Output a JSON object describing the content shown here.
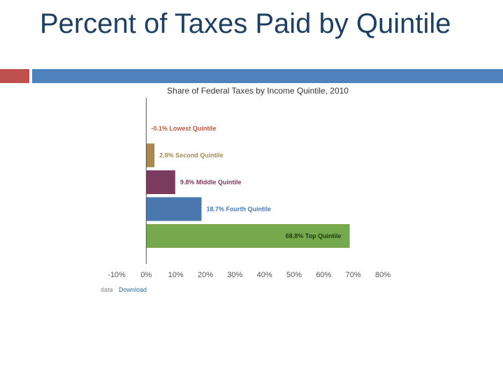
{
  "slide": {
    "title": "Percent of Taxes Paid by Quintile",
    "accent_red": "#c0504d",
    "accent_blue": "#4f81bd",
    "title_color": "#1f3f5f"
  },
  "source": {
    "prefix": "data",
    "link": "Download",
    "link_color": "#2e6da4"
  },
  "chart_data": {
    "type": "bar",
    "orientation": "horizontal",
    "title": "Share of Federal Taxes by Income Quintile, 2010",
    "categories": [
      "Lowest Quintile",
      "Second Quintile",
      "Middle Quintile",
      "Fourth Quintile",
      "Top Quintile"
    ],
    "values": [
      -0.1,
      2.8,
      9.8,
      18.7,
      68.8
    ],
    "labels": [
      "-0.1% Lowest Quintile",
      "2.8% Second Quintile",
      "9.8% Middle Quintile",
      "18.7% Fourth Quintile",
      "68.8% Top Quintile"
    ],
    "colors": [
      "#b3593c",
      "#a8894e",
      "#7a3b5e",
      "#4a78ae",
      "#76a94d"
    ],
    "label_colors": [
      "#b3593c",
      "#a8894e",
      "#7a3b5e",
      "#4a78ae",
      "#1e3a12"
    ],
    "xlim": [
      -10,
      80
    ],
    "xticks": [
      -10,
      0,
      10,
      20,
      30,
      40,
      50,
      60,
      70,
      80
    ],
    "xtick_labels": [
      "-10%",
      "0%",
      "10%",
      "20%",
      "30%",
      "40%",
      "50%",
      "60%",
      "70%",
      "80%"
    ],
    "grid": false,
    "legend": "none"
  }
}
